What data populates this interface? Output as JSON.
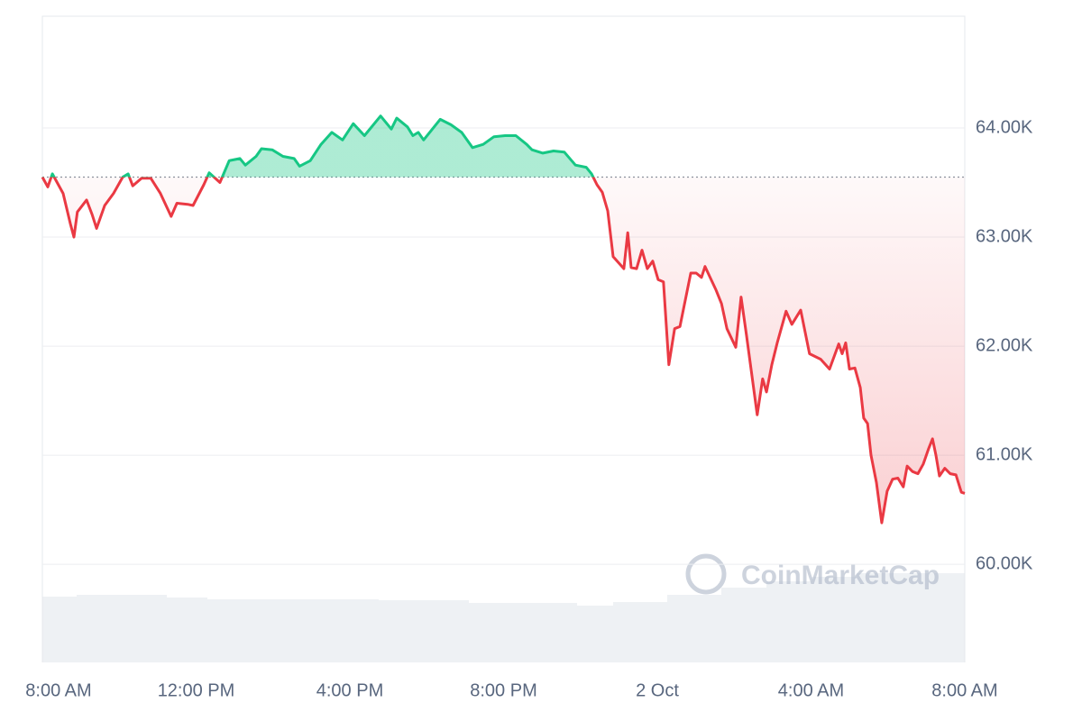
{
  "chart_data": {
    "type": "line",
    "watermark": "CoinMarketCap",
    "baseline": 63550,
    "up_color": "#16c784",
    "down_color": "#ea3943",
    "xlim": [
      0,
      24
    ],
    "xticks": [
      {
        "value": 0,
        "label": "8:00 AM"
      },
      {
        "value": 4,
        "label": "12:00 PM"
      },
      {
        "value": 8,
        "label": "4:00 PM"
      },
      {
        "value": 12,
        "label": "8:00 PM"
      },
      {
        "value": 16,
        "label": "2 Oct"
      },
      {
        "value": 20,
        "label": "4:00 AM"
      },
      {
        "value": 24,
        "label": "8:00 AM"
      }
    ],
    "ylim": [
      59100,
      65025
    ],
    "yticks": [
      {
        "value": 60000,
        "label": "60.00K"
      },
      {
        "value": 61000,
        "label": "61.00K"
      },
      {
        "value": 62000,
        "label": "62.00K"
      },
      {
        "value": 63000,
        "label": "63.00K"
      },
      {
        "value": 64000,
        "label": "64.00K"
      }
    ],
    "grid": true,
    "x": [
      0,
      0.14,
      0.26,
      0.54,
      0.73,
      0.82,
      0.91,
      1.15,
      1.29,
      1.41,
      1.62,
      1.85,
      2.09,
      2.23,
      2.35,
      2.58,
      2.82,
      3.07,
      3.35,
      3.5,
      3.78,
      3.92,
      4.2,
      4.34,
      4.62,
      4.86,
      5.14,
      5.28,
      5.56,
      5.7,
      5.98,
      6.26,
      6.55,
      6.69,
      6.97,
      7.25,
      7.53,
      7.81,
      8.09,
      8.38,
      8.8,
      9.08,
      9.22,
      9.5,
      9.64,
      9.78,
      9.92,
      10.35,
      10.63,
      10.91,
      11.19,
      11.47,
      11.75,
      12.04,
      12.32,
      12.6,
      12.74,
      13.02,
      13.3,
      13.58,
      13.87,
      14.15,
      14.29,
      14.43,
      14.57,
      14.71,
      14.85,
      15.13,
      15.23,
      15.32,
      15.46,
      15.6,
      15.74,
      15.88,
      16.02,
      16.16,
      16.3,
      16.45,
      16.59,
      16.87,
      17.01,
      17.15,
      17.24,
      17.52,
      17.67,
      17.81,
      18.04,
      18.18,
      18.32,
      18.6,
      18.74,
      18.84,
      18.98,
      19.12,
      19.35,
      19.5,
      19.73,
      19.96,
      20.25,
      20.48,
      20.72,
      20.81,
      20.9,
      21,
      21.14,
      21.28,
      21.37,
      21.47,
      21.56,
      21.7,
      21.84,
      21.98,
      22.12,
      22.26,
      22.4,
      22.5,
      22.64,
      22.78,
      22.92,
      23.06,
      23.16,
      23.25,
      23.34,
      23.48,
      23.62,
      23.77,
      23.91,
      24
    ],
    "values": [
      63550,
      63460,
      63580,
      63400,
      63120,
      63000,
      63230,
      63340,
      63210,
      63080,
      63290,
      63400,
      63550,
      63580,
      63470,
      63540,
      63540,
      63400,
      63190,
      63310,
      63300,
      63290,
      63480,
      63590,
      63500,
      63700,
      63720,
      63660,
      63740,
      63810,
      63800,
      63740,
      63720,
      63650,
      63700,
      63850,
      63960,
      63890,
      64040,
      63930,
      64110,
      63990,
      64090,
      64010,
      63930,
      63960,
      63890,
      64080,
      64030,
      63960,
      63820,
      63850,
      63920,
      63930,
      63930,
      63850,
      63800,
      63770,
      63790,
      63780,
      63660,
      63640,
      63580,
      63480,
      63410,
      63240,
      62820,
      62710,
      63040,
      62720,
      62710,
      62880,
      62710,
      62780,
      62610,
      62590,
      61830,
      62160,
      62180,
      62670,
      62670,
      62630,
      62730,
      62520,
      62390,
      62160,
      61990,
      62450,
      62100,
      61370,
      61700,
      61580,
      61830,
      62030,
      62320,
      62200,
      62330,
      61930,
      61880,
      61790,
      62020,
      61930,
      62030,
      61790,
      61800,
      61620,
      61340,
      61290,
      61000,
      60750,
      60380,
      60670,
      60780,
      60790,
      60710,
      60900,
      60850,
      60830,
      60920,
      61060,
      61150,
      61000,
      60810,
      60880,
      60830,
      60820,
      60660,
      60650
    ]
  }
}
